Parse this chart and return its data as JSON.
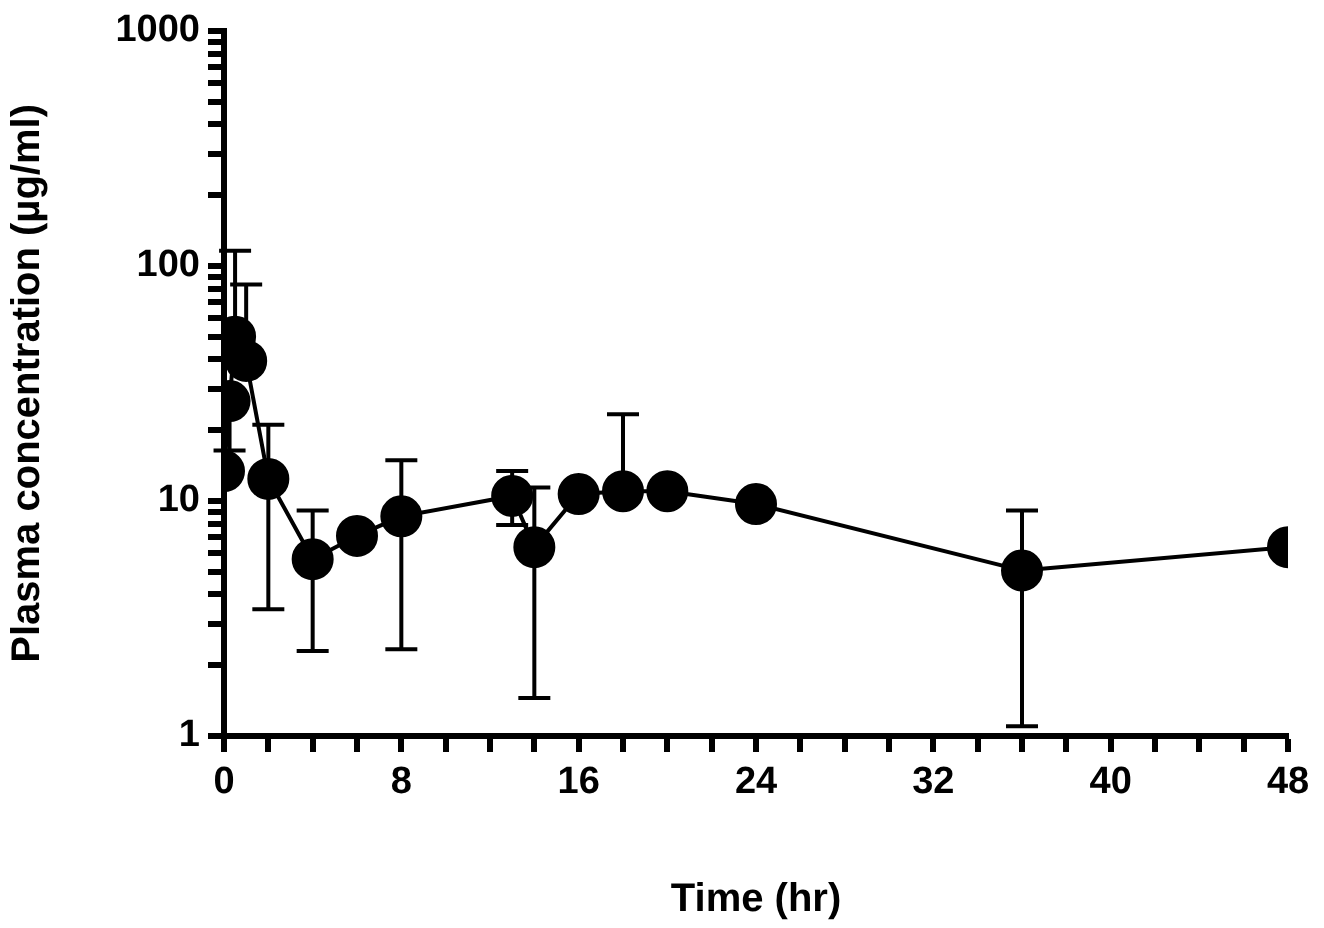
{
  "chart_data": {
    "type": "line",
    "xlabel": "Time (hr)",
    "ylabel": "Plasma concentration (µg/ml)",
    "x": [
      0,
      0.25,
      0.5,
      1,
      2,
      4,
      6,
      8,
      13,
      14,
      16,
      18,
      20,
      24,
      36,
      48
    ],
    "series": [
      {
        "color": "#000000",
        "values": [
          13.4,
          26.6,
          50,
          39.4,
          12.4,
          5.65,
          7.1,
          8.6,
          10.5,
          6.36,
          10.7,
          11,
          11,
          9.7,
          5.06,
          6.36
        ],
        "errors": [
          null,
          [
            16.4,
            26.6
          ],
          [
            50,
            116
          ],
          [
            39.4,
            83.4
          ],
          [
            3.46,
            21.1
          ],
          [
            2.3,
            9.1
          ],
          null,
          [
            2.34,
            14.9
          ],
          [
            7.9,
            13.4
          ],
          [
            1.45,
            11.4
          ],
          null,
          [
            11,
            23.4
          ],
          null,
          null,
          [
            1.1,
            9.1
          ],
          null
        ]
      }
    ],
    "log": "y",
    "xlim": [
      0,
      48
    ],
    "ylim": [
      1,
      1000
    ],
    "xticks": [
      0,
      {
        "value": 2,
        "label": null
      },
      {
        "value": 4,
        "label": null
      },
      {
        "value": 6,
        "label": null
      },
      8,
      {
        "value": 10,
        "label": null
      },
      {
        "value": 12,
        "label": null
      },
      {
        "value": 14,
        "label": null
      },
      16,
      {
        "value": 18,
        "label": null
      },
      {
        "value": 20,
        "label": null
      },
      {
        "value": 22,
        "label": null
      },
      24,
      {
        "value": 26,
        "label": null
      },
      {
        "value": 28,
        "label": null
      },
      {
        "value": 30,
        "label": null
      },
      32,
      {
        "value": 34,
        "label": null
      },
      {
        "value": 36,
        "label": null
      },
      {
        "value": 38,
        "label": null
      },
      40,
      {
        "value": 42,
        "label": null
      },
      {
        "value": 44,
        "label": null
      },
      {
        "value": 46,
        "label": null
      },
      48
    ],
    "yticks": [
      1,
      {
        "value": 2,
        "label": null
      },
      {
        "value": 3,
        "label": null
      },
      {
        "value": 4,
        "label": null
      },
      {
        "value": 5,
        "label": null
      },
      {
        "value": 6,
        "label": null
      },
      {
        "value": 7,
        "label": null
      },
      {
        "value": 8,
        "label": null
      },
      {
        "value": 9,
        "label": null
      },
      10,
      {
        "value": 20,
        "label": null
      },
      {
        "value": 30,
        "label": null
      },
      {
        "value": 40,
        "label": null
      },
      {
        "value": 50,
        "label": null
      },
      {
        "value": 60,
        "label": null
      },
      {
        "value": 70,
        "label": null
      },
      {
        "value": 80,
        "label": null
      },
      {
        "value": 90,
        "label": null
      },
      100,
      {
        "value": 200,
        "label": null
      },
      {
        "value": 300,
        "label": null
      },
      {
        "value": 400,
        "label": null
      },
      {
        "value": 500,
        "label": null
      },
      {
        "value": 600,
        "label": null
      },
      {
        "value": 700,
        "label": null
      },
      {
        "value": 800,
        "label": null
      },
      {
        "value": 900,
        "label": null
      },
      1000
    ],
    "grid": false,
    "legend": false,
    "marker": "circle",
    "line_style": "solid"
  }
}
